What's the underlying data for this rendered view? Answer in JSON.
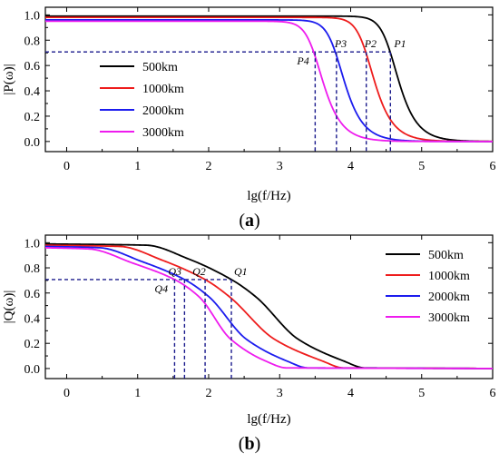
{
  "chart_data": [
    {
      "type": "line",
      "panel": "(a)",
      "panel_letter": "a",
      "xlabel": "lg(f/Hz)",
      "ylabel": "|P(ω)|",
      "xlim": [
        -0.3,
        6
      ],
      "ylim": [
        -0.08,
        1.06
      ],
      "xticks": [
        0,
        1,
        2,
        3,
        4,
        5,
        6
      ],
      "yticks": [
        "0.0",
        "0.2",
        "0.4",
        "0.6",
        "0.8",
        "1.0"
      ],
      "legend_placement": "center-left",
      "threshold": 0.707,
      "series": [
        {
          "name": "500km",
          "color": "#000000",
          "start": 0.99,
          "fc": 4.56,
          "n": 2.2,
          "marker": "P1"
        },
        {
          "name": "1000km",
          "color": "#ee1c1c",
          "start": 0.98,
          "fc": 4.22,
          "n": 2.2,
          "marker": "P2"
        },
        {
          "name": "2000km",
          "color": "#1c1cee",
          "start": 0.96,
          "fc": 3.8,
          "n": 2.2,
          "marker": "P3"
        },
        {
          "name": "3000km",
          "color": "#ee1cee",
          "start": 0.95,
          "fc": 3.5,
          "n": 2.2,
          "marker": "P4"
        }
      ]
    },
    {
      "type": "line",
      "panel": "(b)",
      "panel_letter": "b",
      "xlabel": "lg(f/Hz)",
      "ylabel": "|Q(ω)|",
      "xlim": [
        -0.3,
        6
      ],
      "ylim": [
        -0.08,
        1.06
      ],
      "xticks": [
        0,
        1,
        2,
        3,
        4,
        5,
        6
      ],
      "yticks": [
        "0.0",
        "0.2",
        "0.4",
        "0.6",
        "0.8",
        "1.0"
      ],
      "legend_placement": "top-right",
      "threshold": 0.707,
      "series": [
        {
          "name": "500km",
          "color": "#000000",
          "start": 0.99,
          "fc": 2.32,
          "w": 0.5,
          "tail_start": 2.3,
          "tail_end": 4.2,
          "marker": "Q1"
        },
        {
          "name": "1000km",
          "color": "#ee1c1c",
          "start": 0.98,
          "fc": 1.95,
          "w": 0.42,
          "tail_start": 2.1,
          "tail_end": 3.9,
          "marker": "Q2"
        },
        {
          "name": "2000km",
          "color": "#1c1cee",
          "start": 0.97,
          "fc": 1.66,
          "w": 0.36,
          "tail_start": 1.9,
          "tail_end": 3.4,
          "marker": "Q3"
        },
        {
          "name": "3000km",
          "color": "#ee1cee",
          "start": 0.96,
          "fc": 1.52,
          "w": 0.32,
          "tail_start": 1.7,
          "tail_end": 3.1,
          "marker": "Q4"
        }
      ]
    }
  ]
}
